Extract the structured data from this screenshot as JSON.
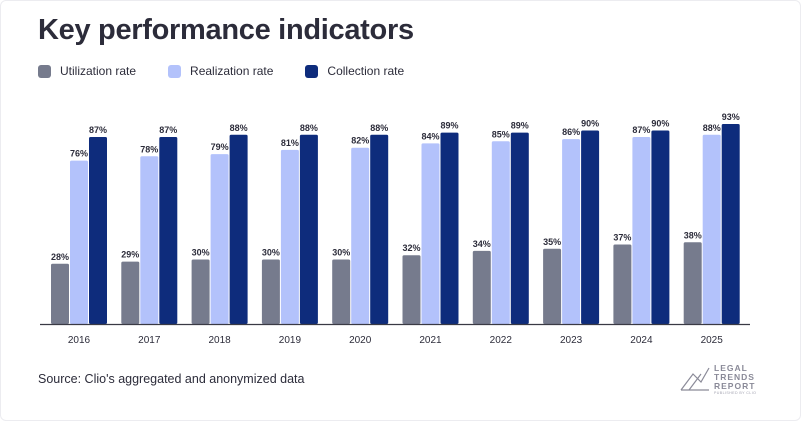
{
  "title": "Key performance indicators",
  "source": "Source: Clio's aggregated and anonymized data",
  "logo": {
    "line1": "LEGAL",
    "line2": "TRENDS",
    "line3": "REPORT",
    "tagline": "PUBLISHED BY CLIO"
  },
  "colors": {
    "utilization": "#767b8d",
    "realization": "#b3c2fb",
    "collection": "#0e2c7c",
    "text": "#2c2c3a",
    "axis": "#3a3a44"
  },
  "chart_data": {
    "type": "bar",
    "categories": [
      "2016",
      "2017",
      "2018",
      "2019",
      "2020",
      "2021",
      "2022",
      "2023",
      "2024",
      "2025"
    ],
    "series": [
      {
        "name": "Utilization rate",
        "values": [
          28,
          29,
          30,
          30,
          30,
          32,
          34,
          35,
          37,
          38
        ]
      },
      {
        "name": "Realization rate",
        "values": [
          76,
          78,
          79,
          81,
          82,
          84,
          85,
          86,
          87,
          88
        ]
      },
      {
        "name": "Collection rate",
        "values": [
          87,
          87,
          88,
          88,
          88,
          89,
          89,
          90,
          90,
          93
        ]
      }
    ],
    "value_suffix": "%",
    "ylim": [
      0,
      100
    ],
    "grid": false,
    "legend_position": "top-left"
  }
}
